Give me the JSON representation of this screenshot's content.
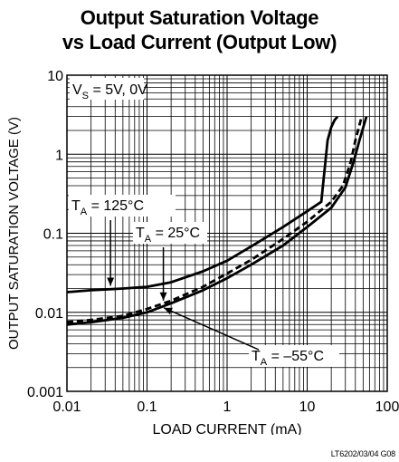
{
  "chart_data": {
    "type": "line",
    "title": [
      "Output Saturation Voltage",
      "vs Load Current (Output Low)"
    ],
    "xlabel": "LOAD CURRENT (mA)",
    "ylabel": "OUTPUT SATURATION VOLTAGE (V)",
    "x_scale": "log",
    "y_scale": "log",
    "xlim": [
      0.01,
      100
    ],
    "ylim": [
      0.001,
      10
    ],
    "x_ticks": [
      0.01,
      0.1,
      1,
      10,
      100
    ],
    "x_tick_labels": [
      "0.01",
      "0.1",
      "1",
      "10",
      "100"
    ],
    "y_ticks": [
      0.001,
      0.01,
      0.1,
      1,
      10
    ],
    "y_tick_labels": [
      "0.001",
      "0.01",
      "0.1",
      "1",
      "10"
    ],
    "grid": true,
    "condition_label": {
      "main": "V",
      "sub": "S",
      "rest": " = 5V, 0V"
    },
    "series": [
      {
        "name": "T_A = 125°C",
        "label_main": "T",
        "label_sub": "A",
        "label_rest": " = 125°C",
        "style": "solid",
        "x": [
          0.01,
          0.02,
          0.05,
          0.1,
          0.2,
          0.5,
          1,
          2,
          5,
          10,
          15,
          18,
          20,
          22,
          24
        ],
        "y": [
          0.018,
          0.019,
          0.02,
          0.021,
          0.024,
          0.033,
          0.045,
          0.068,
          0.12,
          0.19,
          0.25,
          1.5,
          2.2,
          2.7,
          3.0
        ]
      },
      {
        "name": "T_A = 25°C",
        "label_main": "T",
        "label_sub": "A",
        "label_rest": " = 25°C",
        "style": "dashed",
        "x": [
          0.01,
          0.02,
          0.05,
          0.1,
          0.2,
          0.5,
          1,
          2,
          5,
          10,
          20,
          28,
          35,
          40,
          48
        ],
        "y": [
          0.0075,
          0.008,
          0.009,
          0.011,
          0.014,
          0.021,
          0.031,
          0.046,
          0.085,
          0.14,
          0.25,
          0.4,
          0.8,
          1.5,
          3.0
        ]
      },
      {
        "name": "T_A = -55°C",
        "label_main": "T",
        "label_sub": "A",
        "label_rest": " = –55°C",
        "style": "solid",
        "x": [
          0.01,
          0.02,
          0.05,
          0.1,
          0.2,
          0.5,
          1,
          2,
          5,
          10,
          20,
          30,
          38,
          45,
          55
        ],
        "y": [
          0.007,
          0.0075,
          0.0085,
          0.01,
          0.013,
          0.019,
          0.027,
          0.04,
          0.07,
          0.12,
          0.21,
          0.38,
          0.8,
          1.5,
          3.0
        ]
      }
    ]
  },
  "figure_id": "LT6202/03/04 G08"
}
